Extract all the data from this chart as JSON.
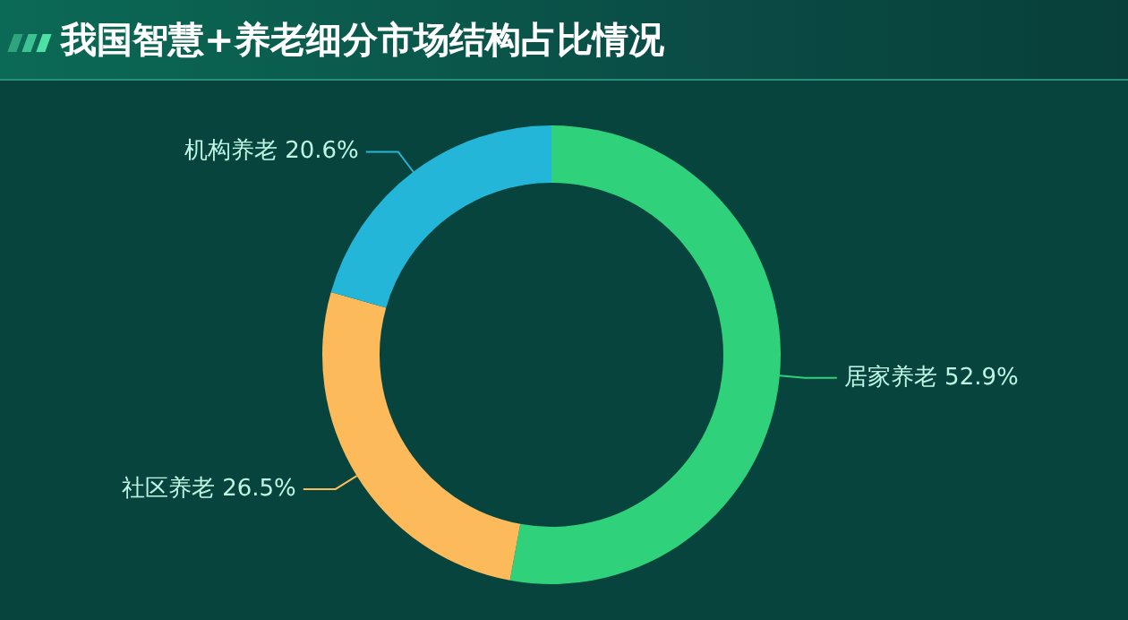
{
  "chart_data": {
    "type": "donut",
    "title": "我国智慧+养老细分市场结构占比情况",
    "categories": [
      "居家养老",
      "社区养老",
      "机构养老"
    ],
    "values": [
      52.9,
      26.5,
      20.6
    ],
    "value_labels": [
      "52.9%",
      "26.5%",
      "20.6%"
    ],
    "colors": [
      "#2fd27a",
      "#fdba5a",
      "#24b6d8"
    ],
    "legend": false
  }
}
